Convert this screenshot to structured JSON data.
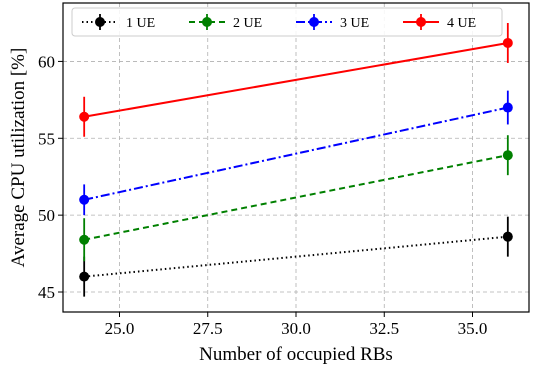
{
  "chart_data": {
    "type": "line",
    "title": "",
    "xlabel": "Number of occupied RBs",
    "ylabel": "Average CPU utilization [%]",
    "xlim": [
      23.4,
      36.6
    ],
    "ylim": [
      43.7,
      63.8
    ],
    "x_ticks": [
      "25.0",
      "27.5",
      "30.0",
      "32.5",
      "35.0"
    ],
    "x_tick_values": [
      25.0,
      27.5,
      30.0,
      32.5,
      35.0
    ],
    "y_ticks": [
      "45",
      "50",
      "55",
      "60"
    ],
    "y_tick_values": [
      45,
      50,
      55,
      60
    ],
    "grid": true,
    "legend_position": "top",
    "series": [
      {
        "name": "1 UE",
        "color": "#000000",
        "dash": "dotted",
        "x": [
          24,
          36
        ],
        "y": [
          46.0,
          48.6
        ],
        "err": [
          1.3,
          1.3
        ]
      },
      {
        "name": "2 UE",
        "color": "#008000",
        "dash": "dashed",
        "x": [
          24,
          36
        ],
        "y": [
          48.4,
          53.9
        ],
        "err": [
          1.4,
          1.3
        ]
      },
      {
        "name": "3 UE",
        "color": "#0000ff",
        "dash": "dashdot",
        "x": [
          24,
          36
        ],
        "y": [
          51.0,
          57.0
        ],
        "err": [
          1.0,
          1.1
        ]
      },
      {
        "name": "4 UE",
        "color": "#ff0000",
        "dash": "solid",
        "x": [
          24,
          36
        ],
        "y": [
          56.4,
          61.2
        ],
        "err": [
          1.3,
          1.3
        ]
      }
    ]
  }
}
